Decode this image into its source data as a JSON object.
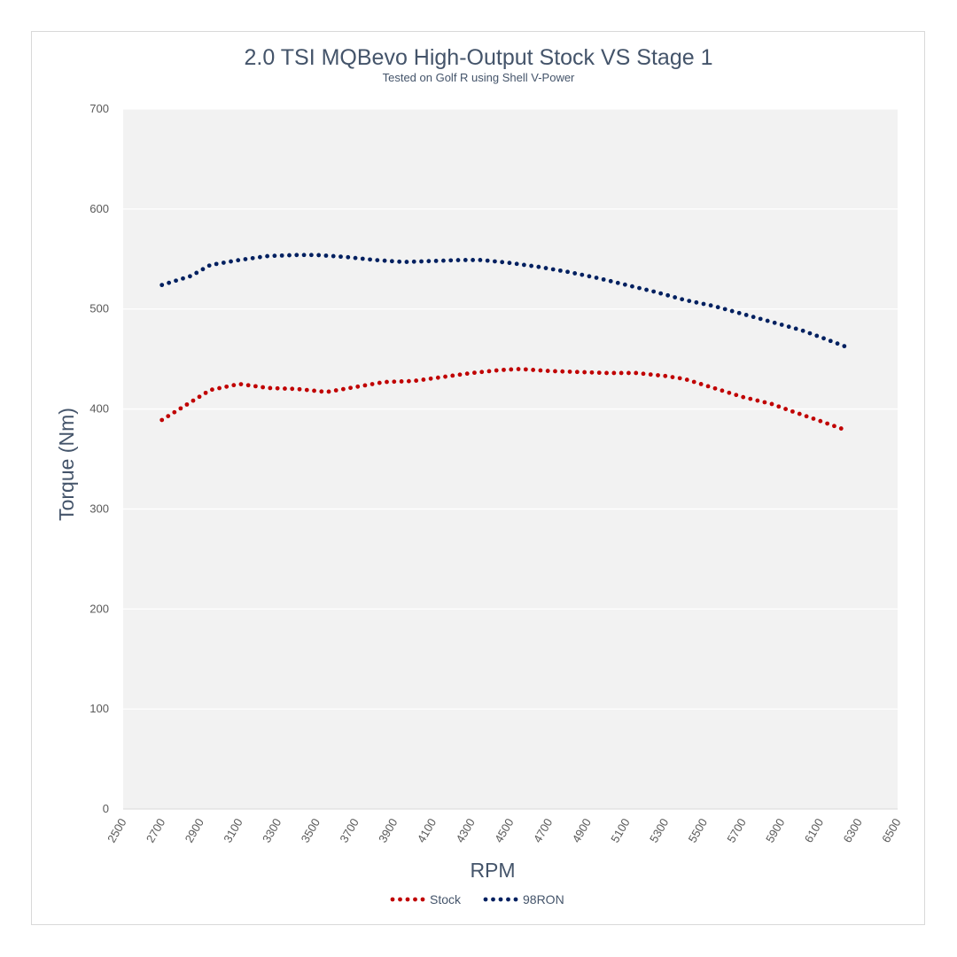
{
  "chart_data": {
    "type": "scatter",
    "title": "2.0 TSI MQBevo High-Output Stock VS Stage 1",
    "subtitle": "Tested on Golf R using Shell V-Power",
    "xlabel": "RPM",
    "ylabel": "Torque (Nm)",
    "xlim": [
      2500,
      6500
    ],
    "ylim": [
      0,
      700
    ],
    "x_ticks": [
      "2500",
      "2700",
      "2900",
      "3100",
      "3300",
      "3500",
      "3700",
      "3900",
      "4100",
      "4300",
      "4500",
      "4700",
      "4900",
      "5100",
      "5300",
      "5500",
      "5700",
      "5900",
      "6100",
      "6300",
      "6500"
    ],
    "y_ticks": [
      "0",
      "100",
      "200",
      "300",
      "400",
      "500",
      "600",
      "700"
    ],
    "grid": true,
    "legend": "bottom",
    "series": [
      {
        "name": "Stock",
        "color": "#c00000",
        "points": [
          [
            2700,
            389
          ],
          [
            2950,
            419
          ],
          [
            3100,
            425
          ],
          [
            3250,
            421
          ],
          [
            3400,
            420
          ],
          [
            3550,
            417
          ],
          [
            3700,
            422
          ],
          [
            3850,
            427
          ],
          [
            4000,
            428
          ],
          [
            4150,
            432
          ],
          [
            4300,
            436
          ],
          [
            4450,
            439
          ],
          [
            4550,
            440
          ],
          [
            4700,
            438
          ],
          [
            4850,
            437
          ],
          [
            5000,
            436
          ],
          [
            5150,
            436
          ],
          [
            5300,
            433
          ],
          [
            5400,
            430
          ],
          [
            5550,
            421
          ],
          [
            5700,
            412
          ],
          [
            5850,
            405
          ],
          [
            5950,
            398
          ],
          [
            6100,
            388
          ],
          [
            6230,
            379
          ]
        ]
      },
      {
        "name": "98RON",
        "color": "#002060",
        "points": [
          [
            2700,
            524
          ],
          [
            2850,
            533
          ],
          [
            2950,
            544
          ],
          [
            3100,
            549
          ],
          [
            3250,
            553
          ],
          [
            3400,
            554
          ],
          [
            3500,
            554
          ],
          [
            3650,
            552
          ],
          [
            3800,
            549
          ],
          [
            3950,
            547
          ],
          [
            4100,
            548
          ],
          [
            4250,
            549
          ],
          [
            4350,
            549
          ],
          [
            4500,
            546
          ],
          [
            4650,
            542
          ],
          [
            4800,
            537
          ],
          [
            4950,
            531
          ],
          [
            5100,
            524
          ],
          [
            5250,
            517
          ],
          [
            5400,
            509
          ],
          [
            5550,
            503
          ],
          [
            5700,
            495
          ],
          [
            5850,
            487
          ],
          [
            6000,
            479
          ],
          [
            6100,
            472
          ],
          [
            6250,
            461
          ]
        ]
      }
    ]
  }
}
